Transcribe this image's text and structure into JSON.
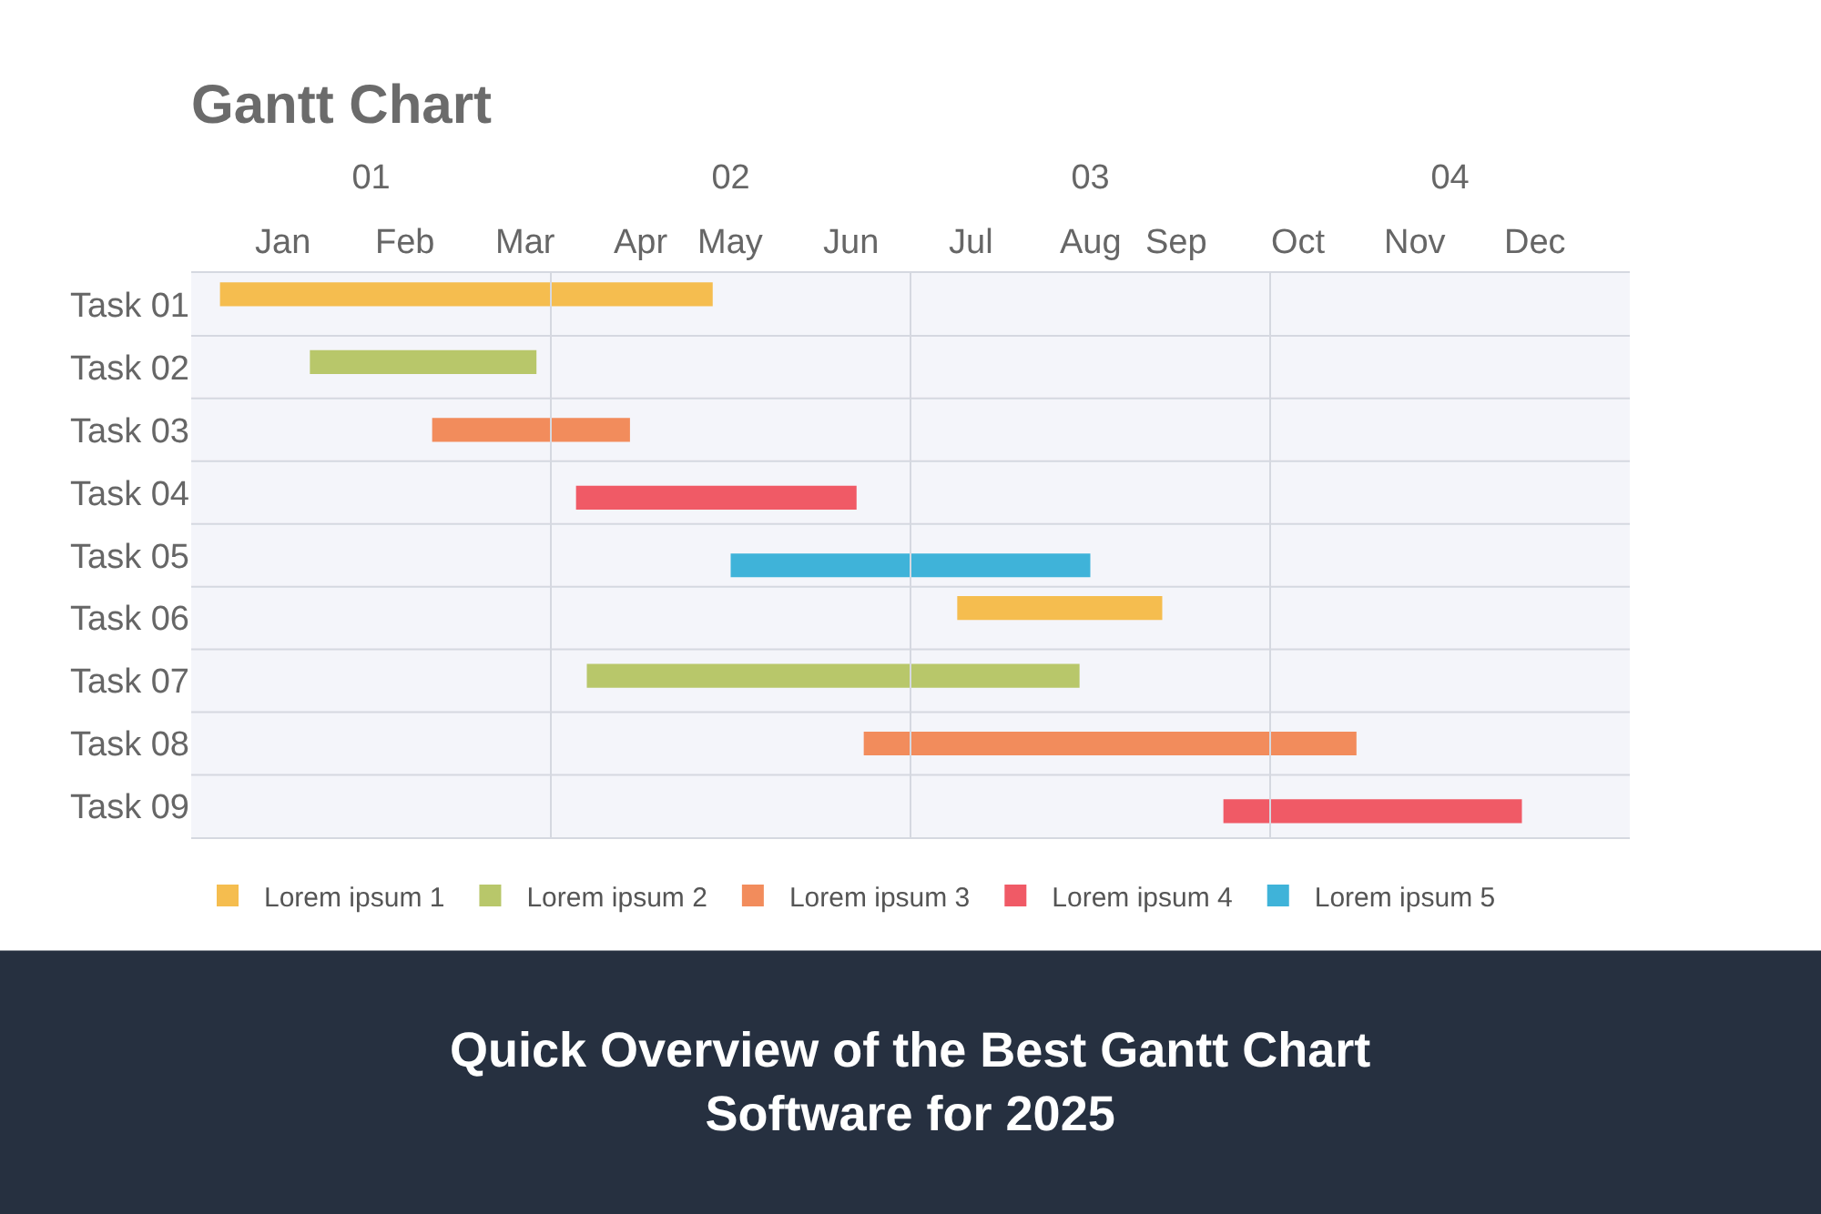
{
  "chart_data": {
    "type": "bar",
    "orientation": "horizontal",
    "title": "Gantt Chart",
    "categories": [
      "Task 01",
      "Task 02",
      "Task 03",
      "Task 04",
      "Task 05",
      "Task 06",
      "Task 07",
      "Task 08",
      "Task 09"
    ],
    "series": [
      {
        "name": "Lorem ipsum 1",
        "color": "#f5bd4f",
        "base": [
          0.58,
          null,
          null,
          null,
          null,
          2.63,
          null,
          null,
          null
        ],
        "values": [
          1.37,
          null,
          null,
          null,
          null,
          0.57,
          null,
          null,
          null
        ]
      },
      {
        "name": "Lorem ipsum 2",
        "color": "#b8c76a",
        "base": [
          null,
          0.83,
          null,
          null,
          null,
          null,
          1.6,
          null,
          null
        ],
        "values": [
          null,
          0.63,
          null,
          null,
          null,
          null,
          1.37,
          null,
          null
        ]
      },
      {
        "name": "Lorem ipsum 3",
        "color": "#f28c5c",
        "base": [
          null,
          null,
          1.17,
          null,
          null,
          null,
          null,
          2.37,
          null
        ],
        "values": [
          null,
          null,
          0.55,
          null,
          null,
          null,
          null,
          1.37,
          null
        ]
      },
      {
        "name": "Lorem ipsum 4",
        "color": "#f05a66",
        "base": [
          null,
          null,
          null,
          1.57,
          null,
          null,
          null,
          null,
          3.37
        ],
        "values": [
          null,
          null,
          null,
          0.78,
          null,
          null,
          null,
          null,
          0.83
        ]
      },
      {
        "name": "Lorem ipsum 5",
        "color": "#3fb3d9",
        "base": [
          null,
          null,
          null,
          null,
          2.0,
          null,
          null,
          null,
          null
        ],
        "values": [
          null,
          null,
          null,
          null,
          1.0,
          null,
          null,
          null,
          null
        ]
      }
    ],
    "xlim": [
      0.5,
      4.5
    ],
    "xticks": [
      {
        "value": 1,
        "label": "01"
      },
      {
        "value": 2,
        "label": "02"
      },
      {
        "value": 3,
        "label": "03"
      },
      {
        "value": 4,
        "label": "04"
      }
    ],
    "legend": "bottom",
    "annotations": [
      "Jan",
      "Feb",
      "Mar",
      "Apr",
      "May",
      "Jun",
      "Jul",
      "Aug",
      "Sep",
      "Oct",
      "Nov",
      "Dec",
      "Quick Overview of the Best Gantt Chart Software for 2025"
    ]
  }
}
